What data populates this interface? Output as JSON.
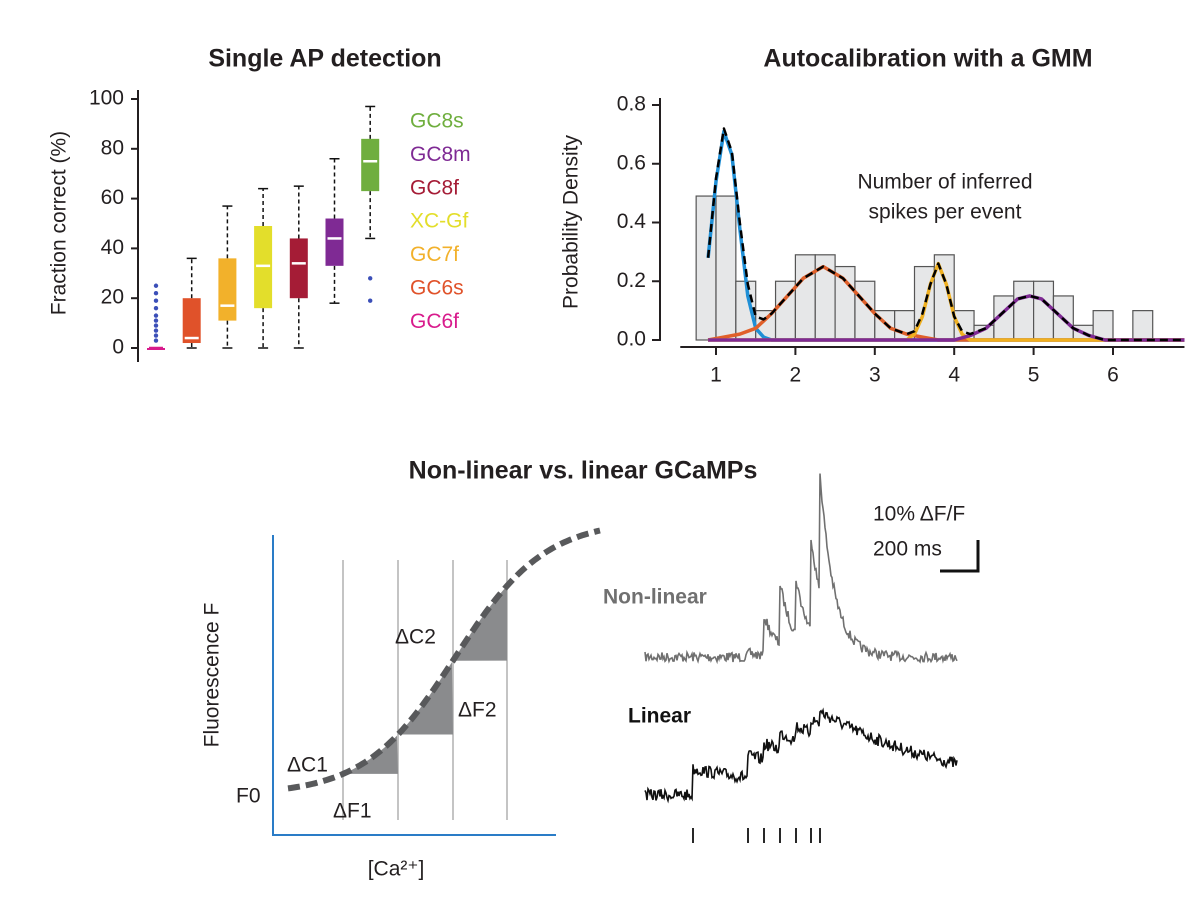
{
  "chart_data": [
    {
      "type": "box",
      "title": "Single AP detection",
      "y_label": "Fraction correct (%)",
      "ylim": [
        0,
        100
      ],
      "yticks": [
        0,
        20,
        40,
        60,
        80,
        100
      ],
      "series": [
        {
          "name": "GC6f",
          "color": "#d81b8c",
          "whislo": 0,
          "q1": 0,
          "med": 0,
          "q3": 0,
          "whishi": 0,
          "fliers": [
            3,
            5,
            7,
            9,
            11,
            13,
            16,
            19,
            22,
            25
          ]
        },
        {
          "name": "GC6s",
          "color": "#e0522a",
          "whislo": 0,
          "q1": 2,
          "med": 4,
          "q3": 20,
          "whishi": 36,
          "fliers": []
        },
        {
          "name": "GC7f",
          "color": "#f2b12b",
          "whislo": 0,
          "q1": 11,
          "med": 17,
          "q3": 36,
          "whishi": 57,
          "fliers": []
        },
        {
          "name": "XC-Gf",
          "color": "#e3de2b",
          "whislo": 0,
          "q1": 16,
          "med": 33,
          "q3": 49,
          "whishi": 64,
          "fliers": []
        },
        {
          "name": "GC8f",
          "color": "#a51c36",
          "whislo": 0,
          "q1": 20,
          "med": 34,
          "q3": 44,
          "whishi": 65,
          "fliers": []
        },
        {
          "name": "GC8m",
          "color": "#7f2a94",
          "whislo": 18,
          "q1": 33,
          "med": 44,
          "q3": 52,
          "whishi": 76,
          "fliers": []
        },
        {
          "name": "GC8s",
          "color": "#6fae3e",
          "whislo": 44,
          "q1": 63,
          "med": 75,
          "q3": 84,
          "whishi": 97,
          "fliers": [
            28,
            19
          ]
        }
      ]
    },
    {
      "type": "histogram",
      "title": "Autocalibration with a GMM",
      "y_label": "Probability Density",
      "annotation": [
        "Number of inferred",
        "spikes per event"
      ],
      "xlim": [
        0.55,
        6.9
      ],
      "xticks": [
        1,
        2,
        3,
        4,
        5,
        6
      ],
      "ylim": [
        0,
        0.8
      ],
      "yticks": [
        {
          "value": 0,
          "label": "0.0"
        },
        0.2,
        0.4,
        0.6,
        0.8
      ],
      "bins": [
        0.75,
        1,
        1.25,
        1.5,
        1.75,
        2,
        2.25,
        2.5,
        2.75,
        3,
        3.25,
        3.5,
        3.75,
        4,
        4.25,
        4.5,
        4.75,
        5,
        5.25,
        5.5,
        5.75,
        6,
        6.25,
        6.5
      ],
      "counts": [
        0.49,
        0.49,
        0.2,
        0.1,
        0.2,
        0.29,
        0.29,
        0.25,
        0.2,
        0.1,
        0.1,
        0.25,
        0.29,
        0.1,
        0.05,
        0.15,
        0.2,
        0.2,
        0.15,
        0.05,
        0.1,
        0,
        0.1
      ],
      "bar_color": "#e6e7e8",
      "series": [
        {
          "color": "#1f8fd6",
          "x": [
            0.9,
            1.0,
            1.1,
            1.2,
            1.3,
            1.4,
            1.5,
            1.6,
            1.7,
            6.9
          ],
          "values": [
            0.28,
            0.54,
            0.71,
            0.63,
            0.38,
            0.15,
            0.04,
            0.01,
            0,
            0
          ]
        },
        {
          "color": "#e0602a",
          "x": [
            0.9,
            1.1,
            1.3,
            1.5,
            1.7,
            1.9,
            2.1,
            2.35,
            2.6,
            2.8,
            3.0,
            3.2,
            3.4,
            3.6,
            3.8,
            6.9
          ],
          "values": [
            0,
            0.01,
            0.02,
            0.04,
            0.09,
            0.15,
            0.21,
            0.25,
            0.21,
            0.15,
            0.09,
            0.04,
            0.02,
            0.01,
            0,
            0
          ]
        },
        {
          "color": "#f0b020",
          "x": [
            0.9,
            3.4,
            3.5,
            3.6,
            3.7,
            3.8,
            3.9,
            4.0,
            4.1,
            4.2,
            6.9
          ],
          "values": [
            0,
            0,
            0.02,
            0.08,
            0.19,
            0.26,
            0.19,
            0.08,
            0.02,
            0,
            0
          ]
        },
        {
          "color": "#7f2a94",
          "x": [
            0.9,
            4.0,
            4.2,
            4.4,
            4.6,
            4.8,
            4.95,
            5.1,
            5.3,
            5.5,
            5.7,
            5.9,
            6.9
          ],
          "values": [
            0,
            0,
            0.015,
            0.04,
            0.09,
            0.14,
            0.15,
            0.14,
            0.09,
            0.04,
            0.015,
            0,
            0
          ]
        },
        {
          "color": "#000000",
          "dashed": true,
          "x": [
            0.9,
            1.0,
            1.1,
            1.2,
            1.3,
            1.4,
            1.5,
            1.6,
            1.7,
            1.9,
            2.1,
            2.35,
            2.6,
            2.8,
            3.0,
            3.2,
            3.4,
            3.5,
            3.6,
            3.7,
            3.8,
            3.9,
            4.0,
            4.1,
            4.2,
            4.4,
            4.6,
            4.8,
            4.95,
            5.1,
            5.3,
            5.5,
            5.7,
            5.9,
            6.2,
            6.9
          ],
          "values": [
            0.28,
            0.55,
            0.72,
            0.64,
            0.4,
            0.19,
            0.08,
            0.07,
            0.09,
            0.15,
            0.21,
            0.25,
            0.21,
            0.15,
            0.09,
            0.04,
            0.02,
            0.03,
            0.09,
            0.19,
            0.26,
            0.19,
            0.08,
            0.03,
            0.02,
            0.04,
            0.09,
            0.14,
            0.15,
            0.14,
            0.09,
            0.04,
            0.015,
            0,
            0,
            0
          ]
        }
      ]
    }
  ],
  "diagram": {
    "title": "Non-linear vs. linear GCaMPs",
    "y_label": "Fluorescence F",
    "x_label": "[Ca²⁺]",
    "labels": {
      "f0": "F0",
      "dc1": "ΔC1",
      "df1": "ΔF1",
      "dc2": "ΔC2",
      "df2": "ΔF2"
    },
    "traces": {
      "nonlinear": "Non-linear",
      "linear": "Linear"
    },
    "scale": {
      "amplitude": "10% ΔF/F",
      "time": "200 ms"
    }
  }
}
